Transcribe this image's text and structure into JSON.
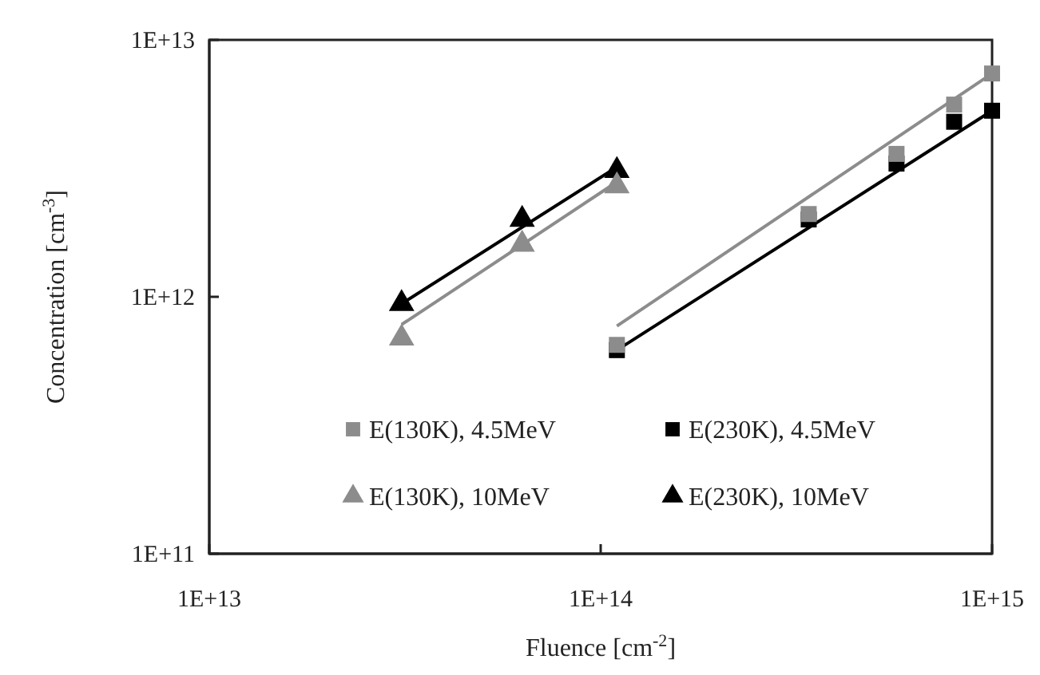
{
  "chart_data": {
    "type": "scatter",
    "xlabel": "Fluence [cm$^{-2}$]",
    "ylabel": "Concentration [cm$^{-3}$]",
    "log": "xy",
    "xlim": [
      10000000000000.0,
      1000000000000000.0
    ],
    "xticks": [
      {
        "value": 10000000000000.0,
        "label": "1E+13"
      },
      {
        "value": 100000000000000.0,
        "label": "1E+14"
      },
      {
        "value": 1000000000000000.0,
        "label": "1E+15"
      }
    ],
    "ylim": [
      100000000000.0,
      10000000000000.0
    ],
    "yticks": [
      {
        "value": 100000000000.0,
        "label": "1E+11"
      },
      {
        "value": 1000000000000.0,
        "label": "1E+12"
      },
      {
        "value": 10000000000000.0,
        "label": "1E+13"
      }
    ],
    "grid": false,
    "legend": "bottom right",
    "series": [
      {
        "name": "E(130K), 4.5MeV",
        "color": "#8c8c8c",
        "marker": "square",
        "x": [
          110000000000000.0,
          340000000000000.0,
          570000000000000.0,
          800000000000000.0,
          1000000000000000.0
        ],
        "values": [
          650000000000.0,
          2100000000000.0,
          3600000000000.0,
          5600000000000.0,
          7400000000000.0
        ]
      },
      {
        "name": "E(230K), 4.5MeV",
        "color": "#000000",
        "marker": "square",
        "x": [
          110000000000000.0,
          340000000000000.0,
          570000000000000.0,
          800000000000000.0,
          1000000000000000.0
        ],
        "values": [
          620000000000.0,
          2000000000000.0,
          3300000000000.0,
          4800000000000.0,
          5300000000000.0
        ]
      },
      {
        "name": "E(130K), 10MeV",
        "color": "#8c8c8c",
        "marker": "triangle",
        "x": [
          31000000000000.0,
          63000000000000.0,
          110000000000000.0
        ],
        "values": [
          690000000000.0,
          1600000000000.0,
          2700000000000.0
        ]
      },
      {
        "name": "E(230K), 10MeV",
        "color": "#000000",
        "marker": "triangle",
        "x": [
          31000000000000.0,
          63000000000000.0,
          110000000000000.0
        ],
        "values": [
          940000000000.0,
          2000000000000.0,
          3100000000000.0
        ]
      },
      {
        "type": "line",
        "color": "#8c8c8c",
        "marker": "none",
        "line_style": "solid",
        "x": [
          110000000000000.0,
          1000000000000000.0
        ],
        "values": [
          770000000000.0,
          7400000000000.0
        ]
      },
      {
        "type": "line",
        "color": "#000000",
        "marker": "none",
        "line_style": "solid",
        "x": [
          110000000000000.0,
          1000000000000000.0
        ],
        "values": [
          620000000000.0,
          5300000000000.0
        ]
      },
      {
        "type": "line",
        "color": "#8c8c8c",
        "marker": "none",
        "line_style": "solid",
        "x": [
          31000000000000.0,
          110000000000000.0
        ],
        "values": [
          780000000000.0,
          2800000000000.0
        ]
      },
      {
        "type": "line",
        "color": "#000000",
        "marker": "none",
        "line_style": "solid",
        "x": [
          31000000000000.0,
          110000000000000.0
        ],
        "values": [
          940000000000.0,
          3200000000000.0
        ]
      }
    ]
  }
}
